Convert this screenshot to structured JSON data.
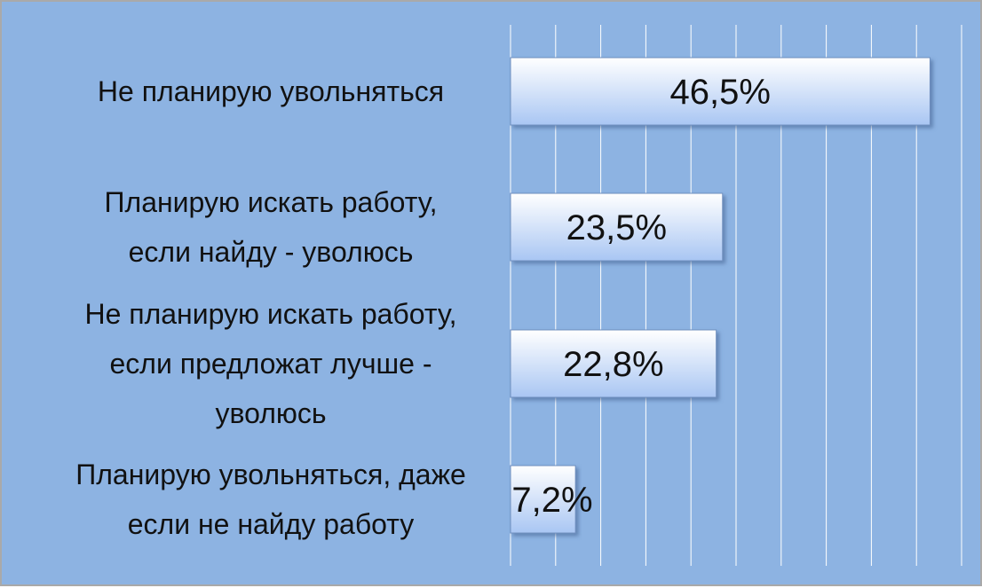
{
  "chart_data": {
    "type": "bar",
    "orientation": "horizontal",
    "categories": [
      "Не планирую увольняться",
      "Планирую искать работу, если найду - уволюсь",
      "Не планирую искать работу, если предложат лучше - уволюсь",
      "Планирую увольняться, даже если не найду работу"
    ],
    "category_lines": [
      [
        "Не планирую увольняться"
      ],
      [
        "Планирую искать работу,",
        "если найду - уволюсь"
      ],
      [
        "Не планирую искать работу,",
        "если предложат лучше -",
        "уволюсь"
      ],
      [
        "Планирую увольняться, даже",
        "если не найду работу"
      ]
    ],
    "values": [
      46.5,
      23.5,
      22.8,
      7.2
    ],
    "data_labels": [
      "46,5%",
      "23,5%",
      "22,8%",
      "7,2%"
    ],
    "xlim": [
      0,
      50
    ],
    "grid": true,
    "legend": "none",
    "colors": {
      "background": "#8db3e2",
      "gridline": "#ffffff",
      "bar_top": "#ffffff",
      "bar_bottom": "#a9c6f3",
      "bar_border": "#6f8fbf",
      "text": "#111111",
      "frame": "#a9a9a9"
    }
  }
}
